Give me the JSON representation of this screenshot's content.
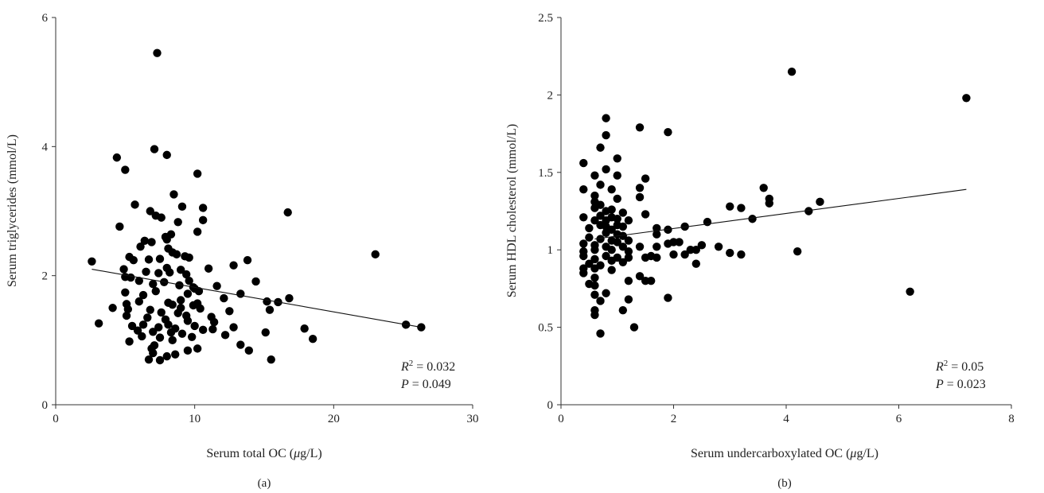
{
  "chart_data": [
    {
      "type": "scatter",
      "panel_label": "(a)",
      "xlabel_prefix": "Serum total OC (",
      "xlabel_unit_mu": "μ",
      "xlabel_suffix": "g/L)",
      "ylabel": "Serum triglycerides (mmol/L)",
      "xlim": [
        0,
        30
      ],
      "ylim": [
        0,
        6
      ],
      "xticks": [
        0,
        10,
        20,
        30
      ],
      "yticks": [
        0,
        2,
        4,
        6
      ],
      "r2_label": "R",
      "r2_value": " = 0.032",
      "p_label": "P",
      "p_value": " = 0.049",
      "trendline": {
        "x": [
          2.6,
          26.3
        ],
        "y": [
          2.1,
          1.2
        ]
      },
      "points": [
        [
          7.3,
          5.45
        ],
        [
          7.1,
          3.96
        ],
        [
          8.0,
          3.87
        ],
        [
          4.4,
          3.83
        ],
        [
          5.0,
          3.64
        ],
        [
          10.2,
          3.58
        ],
        [
          8.5,
          3.26
        ],
        [
          5.7,
          3.1
        ],
        [
          9.1,
          3.07
        ],
        [
          10.6,
          3.05
        ],
        [
          16.7,
          2.98
        ],
        [
          6.8,
          3.0
        ],
        [
          7.2,
          2.93
        ],
        [
          7.6,
          2.9
        ],
        [
          10.6,
          2.86
        ],
        [
          8.8,
          2.83
        ],
        [
          4.6,
          2.76
        ],
        [
          10.2,
          2.68
        ],
        [
          8.3,
          2.64
        ],
        [
          7.9,
          2.6
        ],
        [
          8.0,
          2.56
        ],
        [
          6.4,
          2.54
        ],
        [
          6.9,
          2.52
        ],
        [
          6.1,
          2.45
        ],
        [
          8.1,
          2.42
        ],
        [
          8.4,
          2.36
        ],
        [
          8.7,
          2.33
        ],
        [
          23.0,
          2.33
        ],
        [
          5.3,
          2.29
        ],
        [
          9.3,
          2.3
        ],
        [
          9.6,
          2.28
        ],
        [
          5.6,
          2.24
        ],
        [
          6.7,
          2.25
        ],
        [
          7.5,
          2.26
        ],
        [
          2.6,
          2.22
        ],
        [
          13.8,
          2.24
        ],
        [
          12.8,
          2.16
        ],
        [
          8.0,
          2.12
        ],
        [
          11.0,
          2.11
        ],
        [
          9.0,
          2.09
        ],
        [
          4.9,
          2.1
        ],
        [
          6.5,
          2.06
        ],
        [
          7.4,
          2.04
        ],
        [
          8.2,
          2.05
        ],
        [
          9.4,
          2.02
        ],
        [
          5.0,
          1.98
        ],
        [
          5.4,
          1.97
        ],
        [
          6.0,
          1.92
        ],
        [
          7.8,
          1.9
        ],
        [
          9.6,
          1.92
        ],
        [
          14.4,
          1.91
        ],
        [
          7.0,
          1.87
        ],
        [
          8.9,
          1.85
        ],
        [
          9.9,
          1.82
        ],
        [
          11.6,
          1.84
        ],
        [
          10.0,
          1.8
        ],
        [
          10.3,
          1.76
        ],
        [
          7.2,
          1.76
        ],
        [
          5.0,
          1.74
        ],
        [
          6.3,
          1.7
        ],
        [
          9.5,
          1.72
        ],
        [
          13.3,
          1.72
        ],
        [
          12.1,
          1.65
        ],
        [
          16.8,
          1.65
        ],
        [
          9.0,
          1.62
        ],
        [
          6.0,
          1.6
        ],
        [
          15.2,
          1.6
        ],
        [
          16.0,
          1.59
        ],
        [
          10.2,
          1.57
        ],
        [
          8.1,
          1.58
        ],
        [
          5.1,
          1.56
        ],
        [
          8.4,
          1.55
        ],
        [
          9.9,
          1.54
        ],
        [
          4.1,
          1.5
        ],
        [
          5.2,
          1.48
        ],
        [
          6.8,
          1.47
        ],
        [
          9.0,
          1.5
        ],
        [
          10.4,
          1.49
        ],
        [
          15.4,
          1.47
        ],
        [
          12.5,
          1.45
        ],
        [
          7.6,
          1.43
        ],
        [
          8.8,
          1.42
        ],
        [
          5.1,
          1.38
        ],
        [
          9.4,
          1.38
        ],
        [
          11.2,
          1.36
        ],
        [
          6.6,
          1.35
        ],
        [
          7.9,
          1.32
        ],
        [
          9.5,
          1.3
        ],
        [
          11.4,
          1.28
        ],
        [
          3.1,
          1.26
        ],
        [
          6.3,
          1.24
        ],
        [
          8.1,
          1.24
        ],
        [
          10.0,
          1.22
        ],
        [
          12.8,
          1.2
        ],
        [
          5.5,
          1.22
        ],
        [
          7.4,
          1.2
        ],
        [
          8.6,
          1.18
        ],
        [
          10.6,
          1.16
        ],
        [
          11.3,
          1.17
        ],
        [
          25.2,
          1.24
        ],
        [
          26.3,
          1.2
        ],
        [
          17.9,
          1.18
        ],
        [
          5.9,
          1.15
        ],
        [
          7.0,
          1.13
        ],
        [
          8.3,
          1.12
        ],
        [
          9.1,
          1.1
        ],
        [
          15.1,
          1.12
        ],
        [
          12.2,
          1.08
        ],
        [
          6.2,
          1.06
        ],
        [
          7.5,
          1.04
        ],
        [
          9.8,
          1.05
        ],
        [
          5.3,
          0.98
        ],
        [
          18.5,
          1.02
        ],
        [
          8.4,
          1.0
        ],
        [
          13.3,
          0.93
        ],
        [
          7.1,
          0.92
        ],
        [
          6.9,
          0.87
        ],
        [
          9.5,
          0.84
        ],
        [
          10.2,
          0.87
        ],
        [
          13.9,
          0.84
        ],
        [
          7.0,
          0.8
        ],
        [
          8.6,
          0.78
        ],
        [
          8.0,
          0.75
        ],
        [
          6.7,
          0.7
        ],
        [
          7.5,
          0.69
        ],
        [
          15.5,
          0.7
        ]
      ]
    },
    {
      "type": "scatter",
      "panel_label": "(b)",
      "xlabel_prefix": "Serum undercarboxylated OC (",
      "xlabel_unit_mu": "μ",
      "xlabel_suffix": "g/L)",
      "ylabel": "Serum HDL cholesterol (mmol/L)",
      "xlim": [
        0,
        8
      ],
      "ylim": [
        0,
        2.5
      ],
      "xticks": [
        0,
        2,
        4,
        6,
        8
      ],
      "yticks": [
        0,
        0.5,
        1,
        1.5,
        2,
        2.5
      ],
      "r2_label": "R",
      "r2_value": " = 0.05",
      "p_label": "P",
      "p_value": " = 0.023",
      "trendline": {
        "x": [
          0.6,
          7.2
        ],
        "y": [
          1.07,
          1.39
        ]
      },
      "points": [
        [
          4.1,
          2.15
        ],
        [
          7.2,
          1.98
        ],
        [
          0.8,
          1.85
        ],
        [
          1.4,
          1.79
        ],
        [
          1.9,
          1.76
        ],
        [
          0.8,
          1.74
        ],
        [
          0.7,
          1.66
        ],
        [
          1.0,
          1.59
        ],
        [
          0.4,
          1.56
        ],
        [
          0.8,
          1.52
        ],
        [
          0.6,
          1.48
        ],
        [
          1.0,
          1.48
        ],
        [
          1.5,
          1.46
        ],
        [
          0.7,
          1.42
        ],
        [
          0.9,
          1.39
        ],
        [
          0.4,
          1.39
        ],
        [
          1.4,
          1.4
        ],
        [
          3.6,
          1.4
        ],
        [
          0.6,
          1.35
        ],
        [
          1.0,
          1.33
        ],
        [
          1.4,
          1.34
        ],
        [
          3.7,
          1.33
        ],
        [
          0.6,
          1.31
        ],
        [
          4.6,
          1.31
        ],
        [
          0.7,
          1.29
        ],
        [
          3.7,
          1.3
        ],
        [
          0.6,
          1.27
        ],
        [
          0.9,
          1.26
        ],
        [
          3.0,
          1.28
        ],
        [
          3.2,
          1.27
        ],
        [
          0.8,
          1.25
        ],
        [
          1.1,
          1.24
        ],
        [
          4.4,
          1.25
        ],
        [
          0.7,
          1.22
        ],
        [
          0.9,
          1.21
        ],
        [
          1.5,
          1.23
        ],
        [
          0.4,
          1.21
        ],
        [
          0.6,
          1.19
        ],
        [
          0.8,
          1.19
        ],
        [
          1.0,
          1.2
        ],
        [
          1.2,
          1.19
        ],
        [
          3.4,
          1.2
        ],
        [
          2.6,
          1.18
        ],
        [
          0.7,
          1.16
        ],
        [
          0.8,
          1.15
        ],
        [
          1.0,
          1.16
        ],
        [
          1.1,
          1.15
        ],
        [
          2.2,
          1.15
        ],
        [
          0.5,
          1.14
        ],
        [
          0.9,
          1.13
        ],
        [
          1.7,
          1.14
        ],
        [
          1.9,
          1.13
        ],
        [
          0.8,
          1.11
        ],
        [
          1.0,
          1.1
        ],
        [
          1.1,
          1.09
        ],
        [
          1.7,
          1.1
        ],
        [
          0.5,
          1.08
        ],
        [
          0.7,
          1.07
        ],
        [
          0.9,
          1.06
        ],
        [
          1.2,
          1.06
        ],
        [
          1.0,
          1.05
        ],
        [
          1.9,
          1.04
        ],
        [
          2.0,
          1.05
        ],
        [
          2.1,
          1.05
        ],
        [
          0.4,
          1.04
        ],
        [
          0.6,
          1.03
        ],
        [
          0.8,
          1.02
        ],
        [
          1.1,
          1.02
        ],
        [
          1.4,
          1.02
        ],
        [
          1.7,
          1.02
        ],
        [
          2.5,
          1.03
        ],
        [
          2.8,
          1.02
        ],
        [
          0.6,
          1.0
        ],
        [
          0.9,
          1.0
        ],
        [
          1.2,
          0.99
        ],
        [
          0.4,
          0.99
        ],
        [
          2.3,
          1.0
        ],
        [
          2.4,
          1.0
        ],
        [
          4.2,
          0.99
        ],
        [
          3.0,
          0.98
        ],
        [
          3.2,
          0.97
        ],
        [
          0.4,
          0.96
        ],
        [
          0.8,
          0.96
        ],
        [
          1.0,
          0.95
        ],
        [
          1.2,
          0.95
        ],
        [
          1.5,
          0.95
        ],
        [
          1.6,
          0.96
        ],
        [
          1.7,
          0.95
        ],
        [
          2.0,
          0.97
        ],
        [
          2.2,
          0.97
        ],
        [
          0.6,
          0.94
        ],
        [
          0.9,
          0.93
        ],
        [
          1.1,
          0.92
        ],
        [
          0.5,
          0.91
        ],
        [
          2.4,
          0.91
        ],
        [
          0.7,
          0.9
        ],
        [
          0.4,
          0.88
        ],
        [
          0.6,
          0.88
        ],
        [
          0.9,
          0.87
        ],
        [
          0.4,
          0.85
        ],
        [
          1.4,
          0.83
        ],
        [
          0.6,
          0.82
        ],
        [
          1.2,
          0.8
        ],
        [
          1.5,
          0.8
        ],
        [
          1.6,
          0.8
        ],
        [
          0.5,
          0.78
        ],
        [
          0.6,
          0.77
        ],
        [
          0.8,
          0.72
        ],
        [
          0.6,
          0.71
        ],
        [
          1.9,
          0.69
        ],
        [
          1.2,
          0.68
        ],
        [
          0.7,
          0.67
        ],
        [
          0.6,
          0.61
        ],
        [
          1.1,
          0.61
        ],
        [
          0.6,
          0.58
        ],
        [
          6.2,
          0.73
        ],
        [
          1.3,
          0.5
        ],
        [
          0.7,
          0.46
        ]
      ]
    }
  ]
}
